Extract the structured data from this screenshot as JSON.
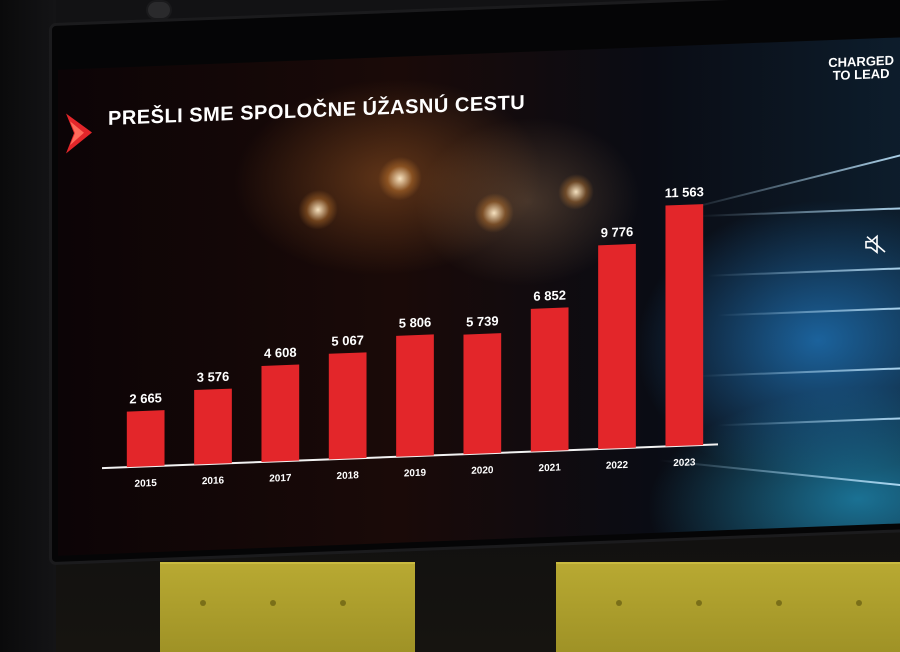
{
  "slide": {
    "title": "PREŠLI SME SPOLOČNE ÚŽASNÚ CESTU",
    "brand_line1": "CHARGED",
    "brand_line2": "TO LEAD",
    "accent_color": "#e3262a",
    "mute_icon": "speaker-muted-icon"
  },
  "chart_data": {
    "type": "bar",
    "categories": [
      "2015",
      "2016",
      "2017",
      "2018",
      "2019",
      "2020",
      "2021",
      "2022",
      "2023"
    ],
    "values": [
      2665,
      3576,
      4608,
      5067,
      5806,
      5739,
      6852,
      9776,
      11563
    ],
    "value_labels": [
      "2 665",
      "3 576",
      "4 608",
      "5 067",
      "5 806",
      "5 739",
      "6 852",
      "9 776",
      "11 563"
    ],
    "title": "",
    "xlabel": "",
    "ylabel": "",
    "ylim": [
      0,
      12000
    ],
    "bar_color": "#e3262a",
    "grid": false,
    "legend": "none"
  }
}
